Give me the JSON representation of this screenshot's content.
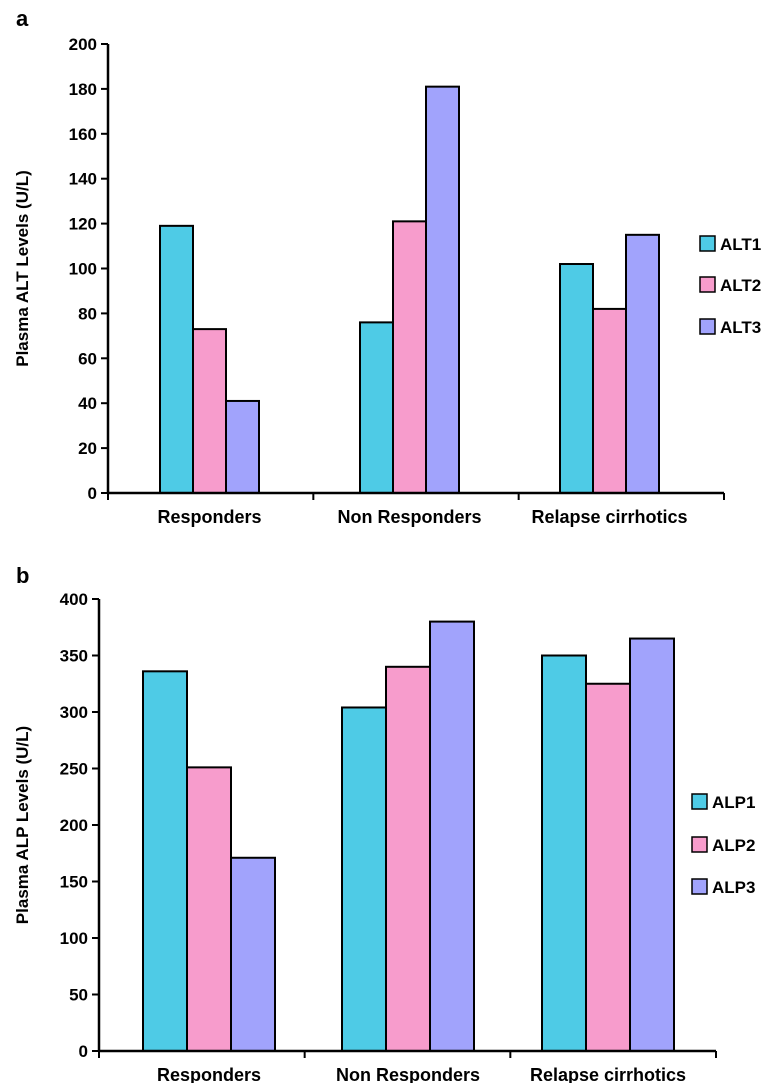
{
  "chart_data": [
    {
      "type": "bar",
      "panel": "a",
      "categories": [
        "Responders",
        "Non Responders",
        "Relapse cirrhotics"
      ],
      "series": [
        {
          "name": "ALT1",
          "color": "#4ecbe6",
          "values": [
            119,
            76,
            102
          ]
        },
        {
          "name": "ALT2",
          "color": "#f79ccc",
          "values": [
            73,
            121,
            82
          ]
        },
        {
          "name": "ALT3",
          "color": "#a1a3fc",
          "values": [
            41,
            181,
            115
          ]
        }
      ],
      "ylabel": "Plasma ALT Levels (U/L)",
      "xlabel": "",
      "ylim": [
        0,
        200
      ],
      "yticks": [
        0,
        20,
        40,
        60,
        80,
        100,
        120,
        140,
        160,
        180,
        200
      ],
      "grid": false,
      "legend_position": "right"
    },
    {
      "type": "bar",
      "panel": "b",
      "categories": [
        "Responders",
        "Non Responders",
        "Relapse cirrhotics"
      ],
      "series": [
        {
          "name": "ALP1",
          "color": "#4ecbe6",
          "values": [
            336,
            304,
            350
          ]
        },
        {
          "name": "ALP2",
          "color": "#f79ccc",
          "values": [
            251,
            340,
            325
          ]
        },
        {
          "name": "ALP3",
          "color": "#a1a3fc",
          "values": [
            171,
            380,
            365
          ]
        }
      ],
      "ylabel": "Plasma ALP Levels (U/L)",
      "xlabel": "",
      "ylim": [
        0,
        400
      ],
      "yticks": [
        0,
        50,
        100,
        150,
        200,
        250,
        300,
        350,
        400
      ],
      "grid": false,
      "legend_position": "right"
    }
  ]
}
